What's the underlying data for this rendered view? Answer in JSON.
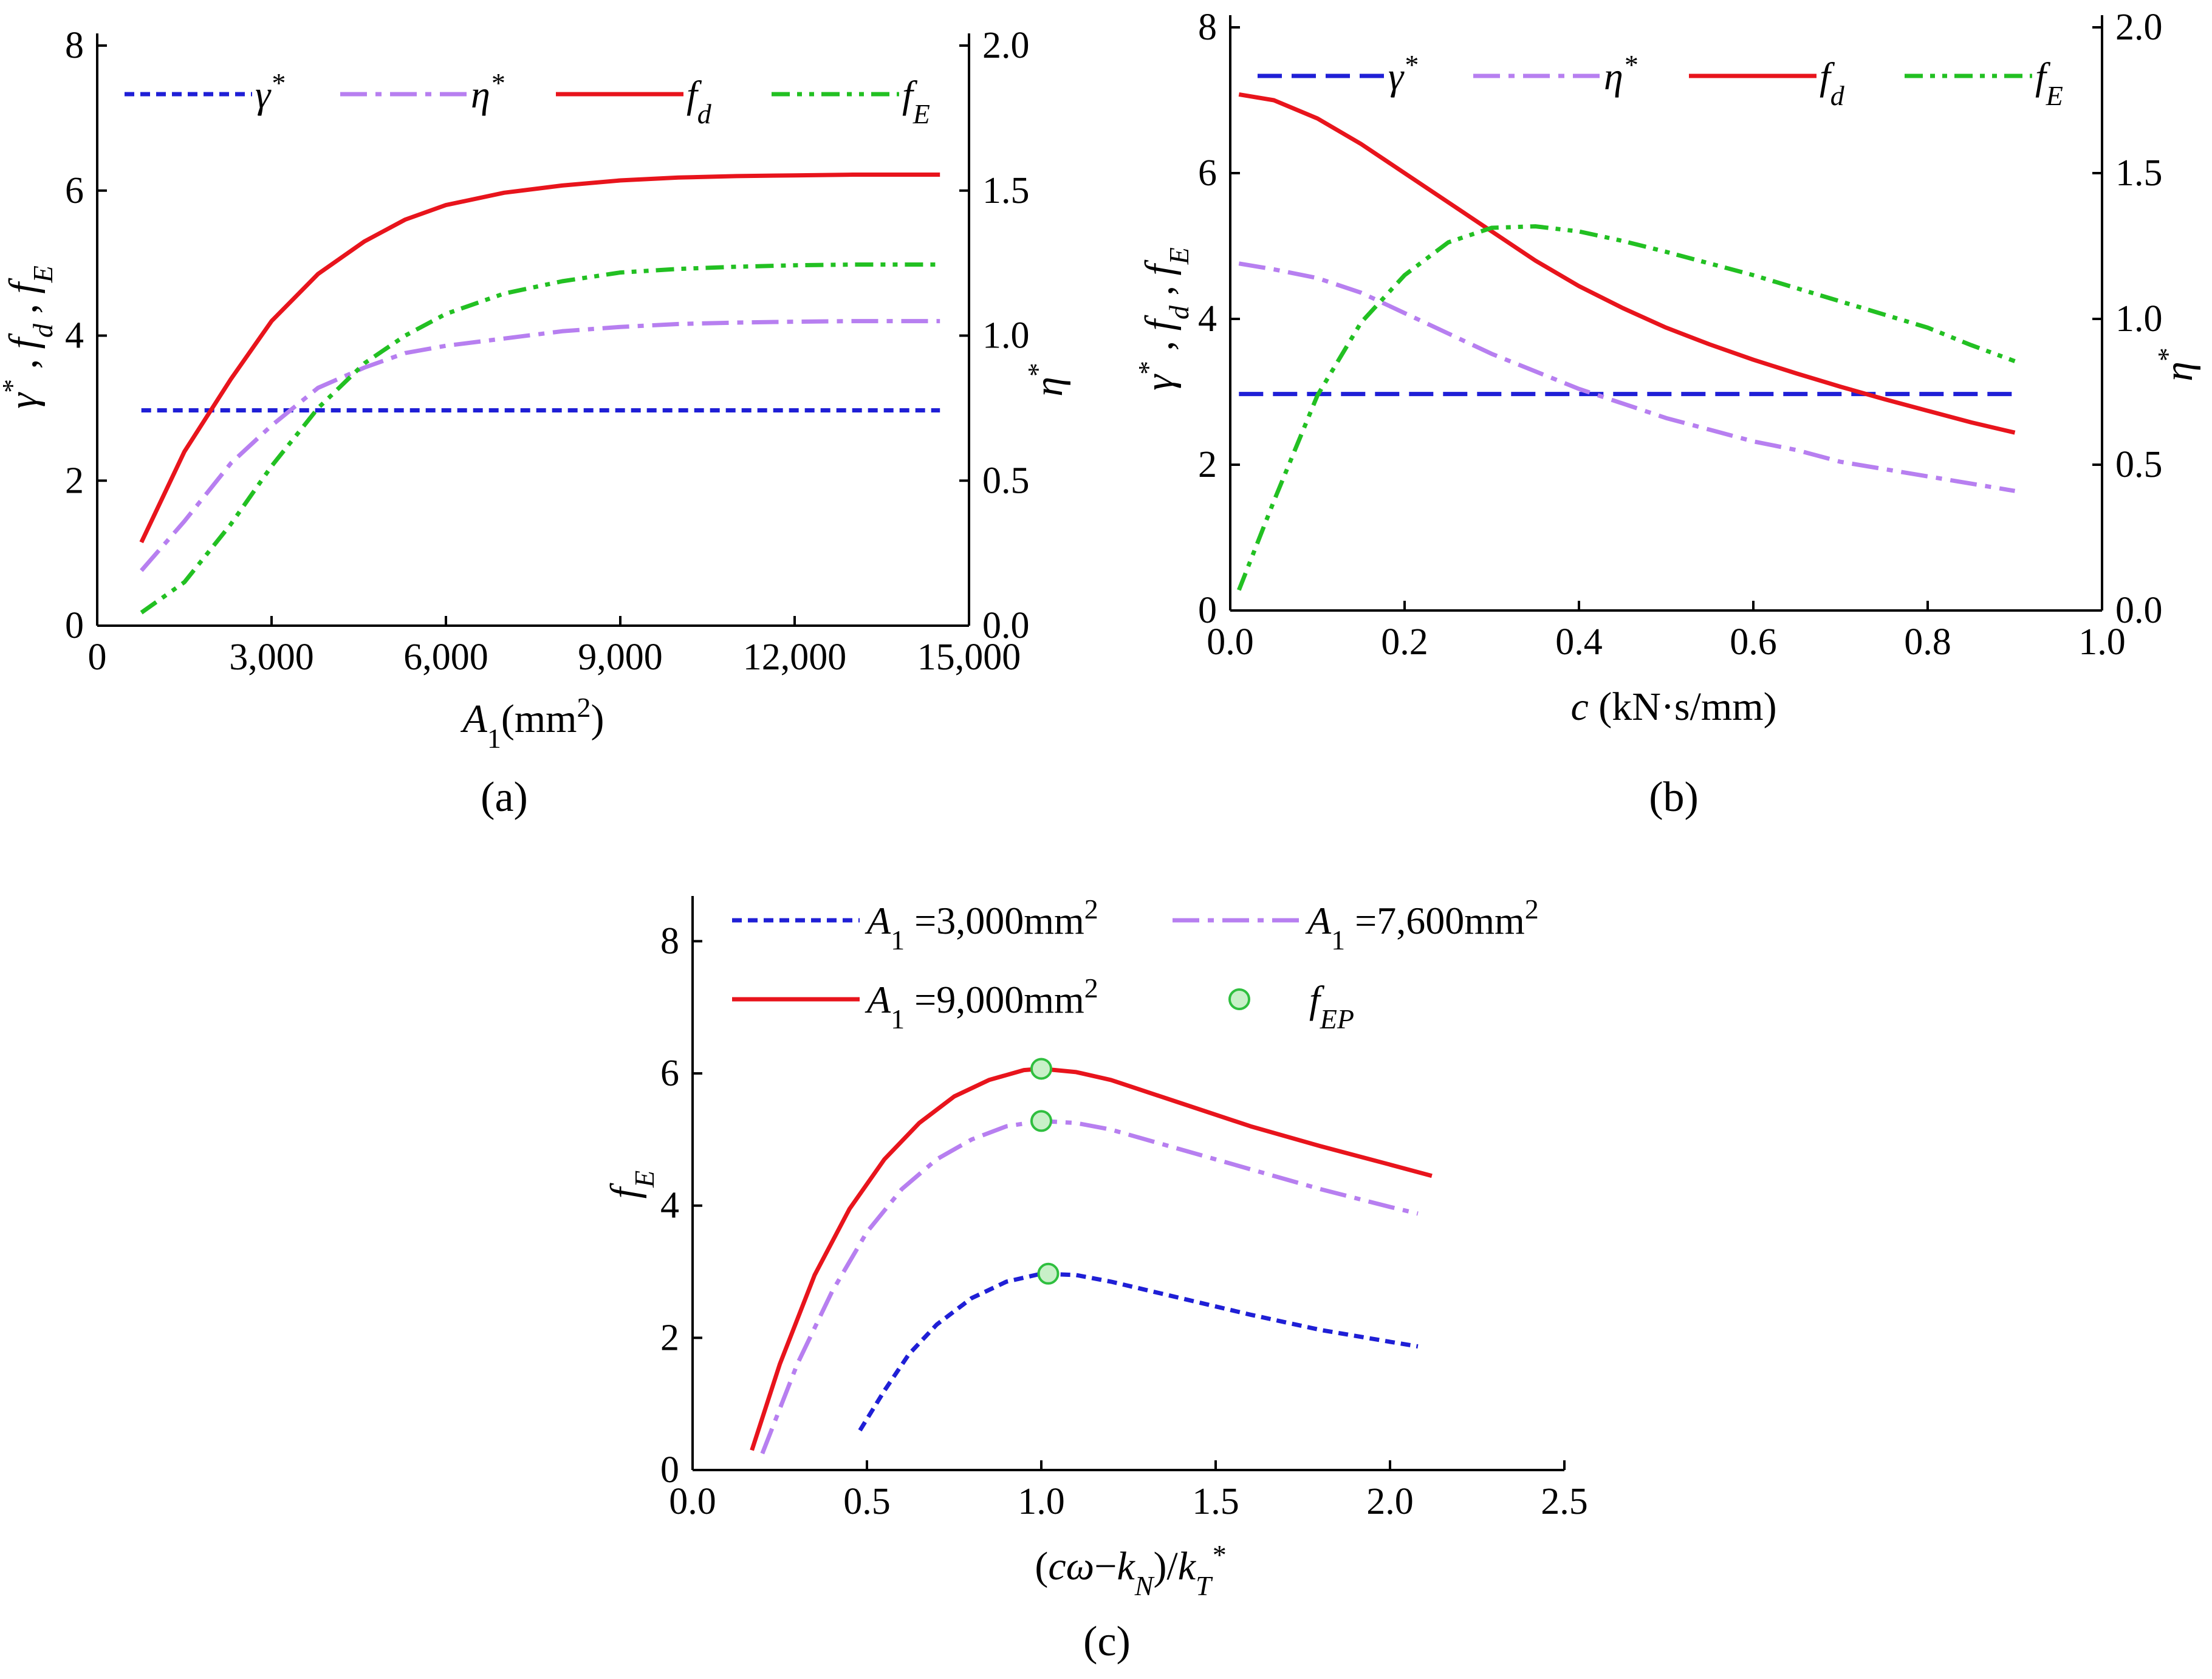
{
  "panel_labels": [
    "(a)",
    "(b)",
    "(c)"
  ],
  "colors": {
    "gamma": "#1f1fd6",
    "eta": "#b77ff0",
    "fd": "#e8141c",
    "fE": "#22c022",
    "fEP_fill": "#c8f0c8",
    "fEP_stroke": "#2fbf3f"
  },
  "chart_data": [
    {
      "id": "a",
      "type": "line",
      "title": "",
      "xlabel": "A1(mm2)",
      "xlabel_parts": {
        "main": "A",
        "sub": "1",
        "unit": "(mm",
        "sup": "2",
        "close": ")"
      },
      "ylabel_left": "γ* , fd , fE",
      "ylabel_right": "η*",
      "xlim": [
        0,
        15000
      ],
      "ylim_left": [
        0,
        8
      ],
      "ylim_right": [
        0.0,
        2.0
      ],
      "xticks": [
        "0",
        "3,000",
        "6,000",
        "9,000",
        "12,000",
        "15,000"
      ],
      "xtick_values": [
        0,
        3000,
        6000,
        9000,
        12000,
        15000
      ],
      "yticks_left": [
        "0",
        "2",
        "4",
        "6",
        "8"
      ],
      "ytick_values_left": [
        0,
        2,
        4,
        6,
        8
      ],
      "yticks_right": [
        "0.0",
        "0.5",
        "1.0",
        "1.5",
        "2.0"
      ],
      "ytick_values_right": [
        0,
        0.5,
        1.0,
        1.5,
        2.0
      ],
      "legend": [
        "γ*",
        "η*",
        "fd",
        "fE"
      ],
      "series": [
        {
          "name": "γ*",
          "axis": "left",
          "style": "dashed",
          "x": [
            760,
            14500
          ],
          "y": [
            2.97,
            2.97
          ]
        },
        {
          "name": "η*",
          "axis": "right",
          "style": "dashdot",
          "x": [
            760,
            1500,
            2300,
            3000,
            3800,
            4600,
            5300,
            6000,
            7000,
            8000,
            9000,
            10000,
            11000,
            12000,
            13000,
            14500
          ],
          "y": [
            0.19,
            0.36,
            0.56,
            0.69,
            0.82,
            0.89,
            0.94,
            0.965,
            0.99,
            1.015,
            1.03,
            1.04,
            1.045,
            1.048,
            1.05,
            1.05
          ]
        },
        {
          "name": "fd",
          "axis": "left",
          "style": "solid",
          "x": [
            760,
            1500,
            2300,
            3000,
            3800,
            4600,
            5300,
            6000,
            7000,
            8000,
            9000,
            10000,
            11000,
            12000,
            13000,
            14500
          ],
          "y": [
            1.15,
            2.4,
            3.4,
            4.2,
            4.85,
            5.3,
            5.6,
            5.8,
            5.97,
            6.07,
            6.14,
            6.18,
            6.2,
            6.21,
            6.22,
            6.22
          ]
        },
        {
          "name": "fE",
          "axis": "left",
          "style": "dashdotdot",
          "x": [
            760,
            1500,
            2300,
            3000,
            3800,
            4600,
            5300,
            6000,
            7000,
            8000,
            9000,
            10000,
            11000,
            12000,
            13000,
            14500
          ],
          "y": [
            0.18,
            0.6,
            1.4,
            2.2,
            3.0,
            3.62,
            4.0,
            4.3,
            4.58,
            4.75,
            4.87,
            4.92,
            4.95,
            4.97,
            4.98,
            4.98
          ]
        }
      ]
    },
    {
      "id": "b",
      "type": "line",
      "title": "",
      "xlabel": "c (kN·s/mm)",
      "xlabel_parts": {
        "main": "c",
        "rest": " (kN·s/mm)"
      },
      "ylabel_left": "γ* , fd , fE",
      "ylabel_right": "η*",
      "xlim": [
        0.0,
        1.0
      ],
      "ylim_left": [
        0,
        8
      ],
      "ylim_right": [
        0.0,
        2.0
      ],
      "xticks": [
        "0.0",
        "0.2",
        "0.4",
        "0.6",
        "0.8",
        "1.0"
      ],
      "xtick_values": [
        0,
        0.2,
        0.4,
        0.6,
        0.8,
        1.0
      ],
      "yticks_left": [
        "0",
        "2",
        "4",
        "6",
        "8"
      ],
      "ytick_values_left": [
        0,
        2,
        4,
        6,
        8
      ],
      "yticks_right": [
        "0.0",
        "0.5",
        "1.0",
        "1.5",
        "2.0"
      ],
      "ytick_values_right": [
        0,
        0.5,
        1.0,
        1.5,
        2.0
      ],
      "legend": [
        "γ*",
        "η*",
        "fd",
        "fE"
      ],
      "series": [
        {
          "name": "γ*",
          "axis": "left",
          "style": "longdash",
          "x": [
            0.01,
            0.9
          ],
          "y": [
            2.97,
            2.97
          ]
        },
        {
          "name": "η*",
          "axis": "right",
          "style": "dashdot",
          "x": [
            0.01,
            0.05,
            0.1,
            0.15,
            0.2,
            0.25,
            0.3,
            0.35,
            0.4,
            0.45,
            0.5,
            0.55,
            0.6,
            0.65,
            0.7,
            0.75,
            0.8,
            0.85,
            0.9
          ],
          "y": [
            1.19,
            1.17,
            1.14,
            1.09,
            1.02,
            0.95,
            0.88,
            0.82,
            0.76,
            0.71,
            0.66,
            0.62,
            0.58,
            0.55,
            0.51,
            0.485,
            0.46,
            0.435,
            0.41
          ]
        },
        {
          "name": "fd",
          "axis": "left",
          "style": "solid",
          "x": [
            0.01,
            0.05,
            0.1,
            0.15,
            0.2,
            0.25,
            0.3,
            0.35,
            0.4,
            0.45,
            0.5,
            0.55,
            0.6,
            0.65,
            0.7,
            0.75,
            0.8,
            0.85,
            0.9
          ],
          "y": [
            7.08,
            7.0,
            6.75,
            6.4,
            6.0,
            5.6,
            5.2,
            4.8,
            4.45,
            4.15,
            3.88,
            3.65,
            3.44,
            3.25,
            3.07,
            2.9,
            2.74,
            2.58,
            2.44
          ]
        },
        {
          "name": "fE",
          "axis": "left",
          "style": "dashdotdot",
          "x": [
            0.01,
            0.05,
            0.1,
            0.15,
            0.2,
            0.25,
            0.3,
            0.35,
            0.4,
            0.45,
            0.5,
            0.55,
            0.6,
            0.65,
            0.7,
            0.75,
            0.8,
            0.85,
            0.9
          ],
          "y": [
            0.28,
            1.5,
            2.95,
            3.95,
            4.6,
            5.05,
            5.25,
            5.27,
            5.2,
            5.07,
            4.92,
            4.76,
            4.6,
            4.42,
            4.24,
            4.06,
            3.88,
            3.64,
            3.42
          ]
        }
      ]
    },
    {
      "id": "c",
      "type": "line",
      "title": "",
      "xlabel": "(cω−kN)/k*T",
      "xlabel_parts": {
        "open": "(",
        "c": "cω",
        "minus": "−",
        "k": "k",
        "ksub": "N",
        "close": ")/",
        "kt": "k",
        "ktsub": "T",
        "ktsup": "*"
      },
      "ylabel_left": "fE",
      "xlim": [
        0.0,
        2.5
      ],
      "ylim_left": [
        0,
        8.5
      ],
      "xticks": [
        "0.0",
        "0.5",
        "1.0",
        "1.5",
        "2.0",
        "2.5"
      ],
      "xtick_values": [
        0,
        0.5,
        1.0,
        1.5,
        2.0,
        2.5
      ],
      "yticks_left": [
        "0",
        "2",
        "4",
        "6",
        "8"
      ],
      "ytick_values_left": [
        0,
        2,
        4,
        6,
        8
      ],
      "legend": [
        "A1 =3,000mm2",
        "A1 =7,600mm2",
        "A1 =9,000mm2",
        "fEP"
      ],
      "legend_parts": [
        {
          "main": "A",
          "sub": "1",
          "rest": " =3,000mm",
          "sup": "2"
        },
        {
          "main": "A",
          "sub": "1",
          "rest": " =7,600mm",
          "sup": "2"
        },
        {
          "main": "A",
          "sub": "1",
          "rest": " =9,000mm",
          "sup": "2"
        },
        {
          "main": "f",
          "sub": "EP"
        }
      ],
      "series": [
        {
          "name": "A1 =3,000mm2",
          "style": "dashed",
          "x": [
            0.48,
            0.55,
            0.62,
            0.7,
            0.8,
            0.9,
            1.0,
            1.1,
            1.2,
            1.4,
            1.6,
            1.8,
            2.0,
            2.08
          ],
          "y": [
            0.6,
            1.2,
            1.75,
            2.2,
            2.6,
            2.85,
            2.97,
            2.95,
            2.85,
            2.6,
            2.35,
            2.12,
            1.94,
            1.87
          ]
        },
        {
          "name": "A1 =7,600mm2",
          "style": "dashdot",
          "x": [
            0.2,
            0.3,
            0.4,
            0.5,
            0.6,
            0.7,
            0.8,
            0.9,
            1.0,
            1.1,
            1.2,
            1.4,
            1.6,
            1.8,
            2.0,
            2.08
          ],
          "y": [
            0.25,
            1.6,
            2.7,
            3.6,
            4.25,
            4.7,
            5.0,
            5.2,
            5.28,
            5.25,
            5.15,
            4.85,
            4.55,
            4.25,
            3.98,
            3.88
          ]
        },
        {
          "name": "A1 =9,000mm2",
          "style": "solid",
          "x": [
            0.17,
            0.25,
            0.35,
            0.45,
            0.55,
            0.65,
            0.75,
            0.85,
            0.95,
            1.0,
            1.1,
            1.2,
            1.4,
            1.6,
            1.8,
            2.0,
            2.12
          ],
          "y": [
            0.3,
            1.6,
            2.95,
            3.95,
            4.7,
            5.25,
            5.65,
            5.9,
            6.05,
            6.07,
            6.02,
            5.9,
            5.55,
            5.2,
            4.9,
            4.62,
            4.45
          ]
        },
        {
          "name": "fEP",
          "style": "marker",
          "x": [
            1.0,
            1.0,
            1.02
          ],
          "y": [
            6.07,
            5.28,
            2.97
          ]
        }
      ]
    }
  ]
}
